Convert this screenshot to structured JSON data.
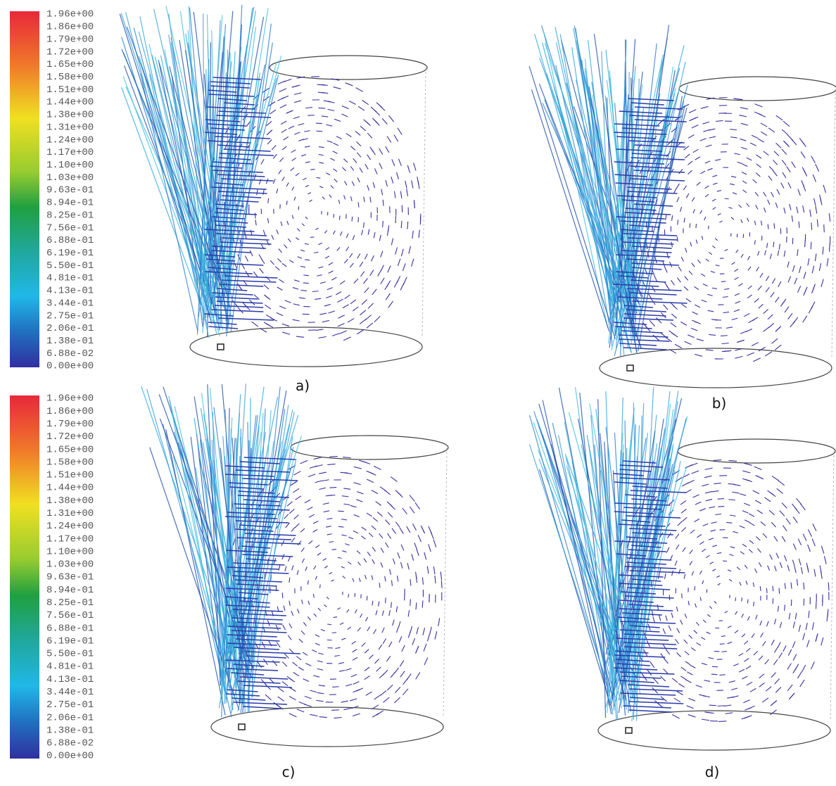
{
  "colorbars": [
    {
      "labels": [
        "1.96e+00",
        "1.86e+00",
        "1.79e+00",
        "1.72e+00",
        "1.65e+00",
        "1.58e+00",
        "1.51e+00",
        "1.44e+00",
        "1.38e+00",
        "1.31e+00",
        "1.24e+00",
        "1.17e+00",
        "1.10e+00",
        "1.03e+00",
        "9.63e-01",
        "8.94e-01",
        "8.25e-01",
        "7.56e-01",
        "6.88e-01",
        "6.19e-01",
        "5.50e-01",
        "4.81e-01",
        "4.13e-01",
        "3.44e-01",
        "2.75e-01",
        "2.06e-01",
        "1.38e-01",
        "6.88e-02",
        "0.00e+00"
      ]
    },
    {
      "labels": [
        "1.96e+00",
        "1.86e+00",
        "1.79e+00",
        "1.72e+00",
        "1.65e+00",
        "1.58e+00",
        "1.51e+00",
        "1.44e+00",
        "1.38e+00",
        "1.31e+00",
        "1.24e+00",
        "1.17e+00",
        "1.10e+00",
        "1.03e+00",
        "9.63e-01",
        "8.94e-01",
        "8.25e-01",
        "7.56e-01",
        "6.88e-01",
        "6.19e-01",
        "5.50e-01",
        "4.81e-01",
        "4.13e-01",
        "3.44e-01",
        "2.75e-01",
        "2.06e-01",
        "1.38e-01",
        "6.88e-02",
        "0.00e+00"
      ]
    }
  ],
  "panels": [
    {
      "label": "a)"
    },
    {
      "label": "b)"
    },
    {
      "label": "c)"
    },
    {
      "label": "d)"
    }
  ]
}
